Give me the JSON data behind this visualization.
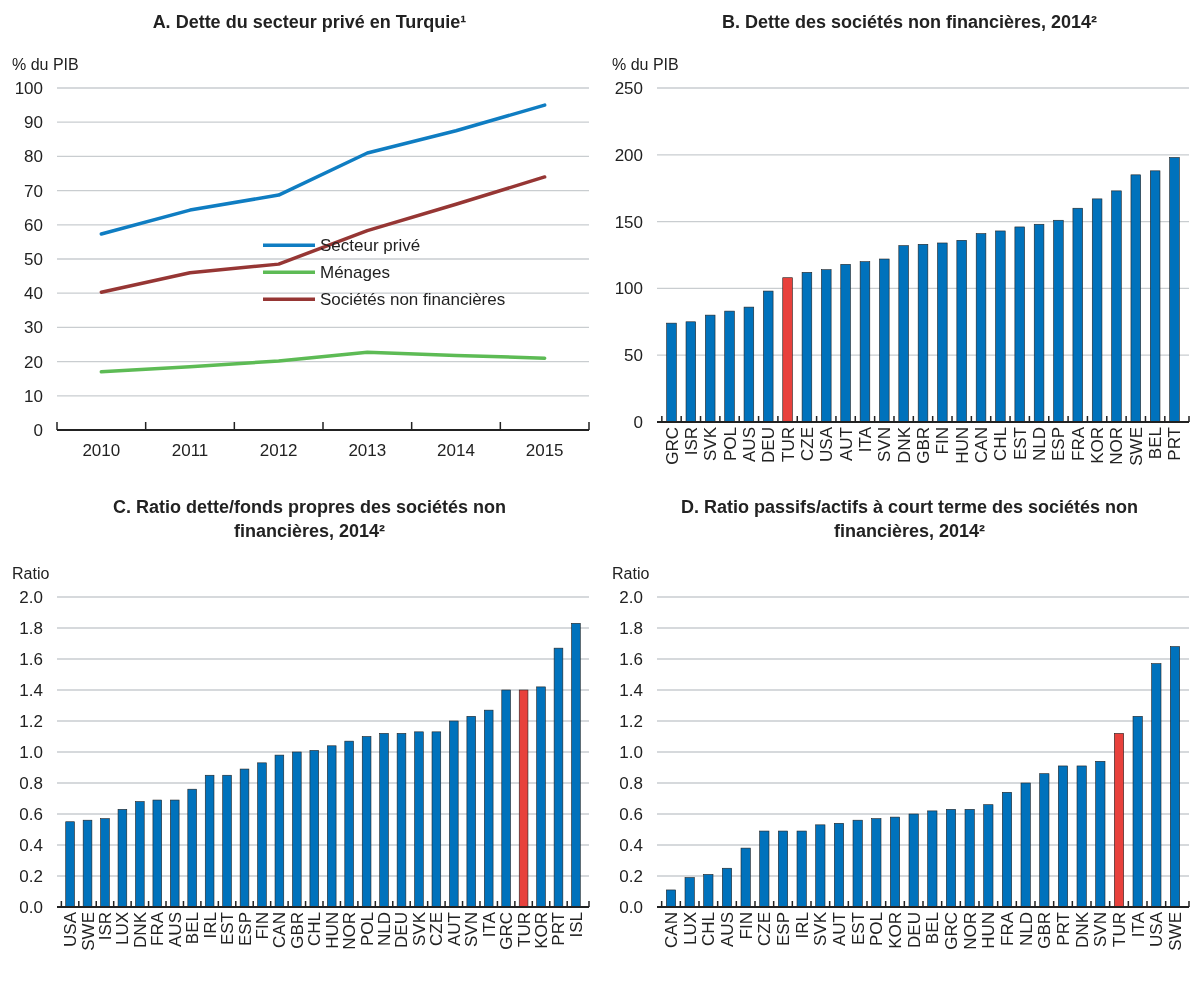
{
  "chart_data": [
    {
      "type": "line",
      "title": "A. Dette du secteur privé en Turquie¹",
      "ylabel": "% du PIB",
      "categories": [
        "2010",
        "2011",
        "2012",
        "2013",
        "2014",
        "2015"
      ],
      "series": [
        {
          "name": "Secteur privé",
          "color": "#0f7dc2",
          "values": [
            57.3,
            64.3,
            68.7,
            81,
            87.5,
            95
          ]
        },
        {
          "name": "Ménages",
          "color": "#5dbb55",
          "values": [
            17,
            18.5,
            20.2,
            22.7,
            21.8,
            21
          ]
        },
        {
          "name": "Sociétés non financières",
          "color": "#963634",
          "values": [
            40.3,
            46,
            48.5,
            58.3,
            66,
            74
          ]
        }
      ],
      "ylim": [
        0,
        100
      ],
      "yticks": [
        0,
        10,
        20,
        30,
        40,
        50,
        60,
        70,
        80,
        90,
        100
      ],
      "grid": "y",
      "legend": "right"
    },
    {
      "type": "bar",
      "title": "B. Dette des sociétés non financières, 2014²",
      "ylabel": "% du PIB",
      "categories": [
        "GRC",
        "ISR",
        "SVK",
        "POL",
        "AUS",
        "DEU",
        "TUR",
        "CZE",
        "USA",
        "AUT",
        "ITA",
        "SVN",
        "DNK",
        "GBR",
        "FIN",
        "HUN",
        "CAN",
        "CHL",
        "EST",
        "NLD",
        "ESP",
        "FRA",
        "KOR",
        "NOR",
        "SWE",
        "BEL",
        "PRT"
      ],
      "values": [
        74,
        75,
        80,
        83,
        86,
        98,
        108,
        112,
        114,
        118,
        120,
        122,
        132,
        133,
        134,
        136,
        141,
        143,
        146,
        148,
        151,
        160,
        167,
        173,
        185,
        188,
        198
      ],
      "colors": [
        "#0072bc",
        "#0072bc",
        "#0072bc",
        "#0072bc",
        "#0072bc",
        "#0072bc",
        "#e8413c",
        "#0072bc",
        "#0072bc",
        "#0072bc",
        "#0072bc",
        "#0072bc",
        "#0072bc",
        "#0072bc",
        "#0072bc",
        "#0072bc",
        "#0072bc",
        "#0072bc",
        "#0072bc",
        "#0072bc",
        "#0072bc",
        "#0072bc",
        "#0072bc",
        "#0072bc",
        "#0072bc",
        "#0072bc",
        "#0072bc"
      ],
      "ylim": [
        0,
        250
      ],
      "yticks": [
        0,
        50,
        100,
        150,
        200,
        250
      ],
      "grid": "y"
    },
    {
      "type": "bar",
      "title": "C. Ratio dette/fonds propres des sociétés non financières, 2014²",
      "ylabel": "Ratio",
      "categories": [
        "USA",
        "SWE",
        "ISR",
        "LUX",
        "DNK",
        "FRA",
        "AUS",
        "BEL",
        "IRL",
        "EST",
        "ESP",
        "FIN",
        "CAN",
        "GBR",
        "CHL",
        "HUN",
        "NOR",
        "POL",
        "NLD",
        "DEU",
        "SVK",
        "CZE",
        "AUT",
        "SVN",
        "ITA",
        "GRC",
        "TUR",
        "KOR",
        "PRT",
        "ISL"
      ],
      "values": [
        0.55,
        0.56,
        0.57,
        0.63,
        0.68,
        0.69,
        0.69,
        0.76,
        0.85,
        0.85,
        0.89,
        0.93,
        0.98,
        1.0,
        1.01,
        1.04,
        1.07,
        1.1,
        1.12,
        1.12,
        1.13,
        1.13,
        1.2,
        1.23,
        1.27,
        1.4,
        1.4,
        1.42,
        1.67,
        1.83
      ],
      "colors": [
        "#0072bc",
        "#0072bc",
        "#0072bc",
        "#0072bc",
        "#0072bc",
        "#0072bc",
        "#0072bc",
        "#0072bc",
        "#0072bc",
        "#0072bc",
        "#0072bc",
        "#0072bc",
        "#0072bc",
        "#0072bc",
        "#0072bc",
        "#0072bc",
        "#0072bc",
        "#0072bc",
        "#0072bc",
        "#0072bc",
        "#0072bc",
        "#0072bc",
        "#0072bc",
        "#0072bc",
        "#0072bc",
        "#0072bc",
        "#e8413c",
        "#0072bc",
        "#0072bc",
        "#0072bc"
      ],
      "ylim": [
        0,
        2
      ],
      "yticks": [
        {
          "value": 0,
          "label": "0.0"
        },
        0.2,
        0.4,
        0.6,
        0.8,
        {
          "value": 1,
          "label": "1.0"
        },
        1.2,
        1.4,
        1.6,
        1.8,
        {
          "value": 2,
          "label": "2.0"
        }
      ],
      "grid": "y"
    },
    {
      "type": "bar",
      "title": "D. Ratio passifs/actifs à court terme des sociétés non financières, 2014²",
      "ylabel": "Ratio",
      "categories": [
        "CAN",
        "LUX",
        "CHL",
        "AUS",
        "FIN",
        "CZE",
        "ESP",
        "IRL",
        "SVK",
        "AUT",
        "EST",
        "POL",
        "KOR",
        "DEU",
        "BEL",
        "GRC",
        "NOR",
        "HUN",
        "FRA",
        "NLD",
        "GBR",
        "PRT",
        "DNK",
        "SVN",
        "TUR",
        "ITA",
        "USA",
        "SWE"
      ],
      "values": [
        0.11,
        0.19,
        0.21,
        0.25,
        0.38,
        0.49,
        0.49,
        0.49,
        0.53,
        0.54,
        0.56,
        0.57,
        0.58,
        0.6,
        0.62,
        0.63,
        0.63,
        0.66,
        0.74,
        0.8,
        0.86,
        0.91,
        0.91,
        0.94,
        1.12,
        1.23,
        1.57,
        1.68
      ],
      "colors": [
        "#0072bc",
        "#0072bc",
        "#0072bc",
        "#0072bc",
        "#0072bc",
        "#0072bc",
        "#0072bc",
        "#0072bc",
        "#0072bc",
        "#0072bc",
        "#0072bc",
        "#0072bc",
        "#0072bc",
        "#0072bc",
        "#0072bc",
        "#0072bc",
        "#0072bc",
        "#0072bc",
        "#0072bc",
        "#0072bc",
        "#0072bc",
        "#0072bc",
        "#0072bc",
        "#0072bc",
        "#e8413c",
        "#0072bc",
        "#0072bc",
        "#0072bc"
      ],
      "ylim": [
        0,
        2
      ],
      "yticks": [
        {
          "value": 0,
          "label": "0.0"
        },
        0.2,
        0.4,
        0.6,
        0.8,
        {
          "value": 1,
          "label": "1.0"
        },
        1.2,
        1.4,
        1.6,
        1.8,
        {
          "value": 2,
          "label": "2.0"
        }
      ],
      "grid": "y"
    }
  ]
}
